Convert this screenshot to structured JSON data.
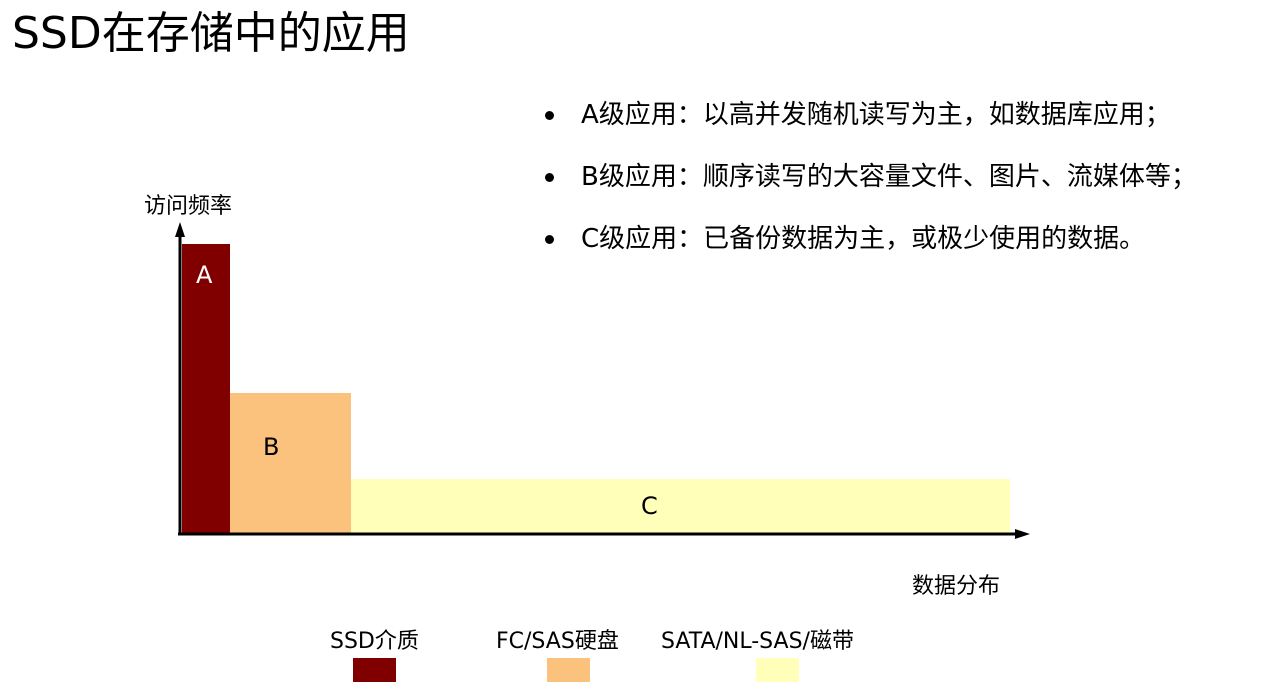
{
  "title": "SSD在存储中的应用",
  "bullets": [
    "A级应用：以高并发随机读写为主，如数据库应用；",
    "B级应用：顺序读写的大容量文件、图片、流媒体等；",
    "C级应用：已备份数据为主，或极少使用的数据。"
  ],
  "diagram": {
    "y_axis_label": "访问频率",
    "x_axis_label": "数据分布",
    "blocks": [
      {
        "label": "A",
        "color": "#800000"
      },
      {
        "label": "B",
        "color": "#fbc27e"
      },
      {
        "label": "C",
        "color": "#ffffb9"
      }
    ]
  },
  "legend": [
    {
      "label": "SSD介质",
      "color": "#800000"
    },
    {
      "label": "FC/SAS硬盘",
      "color": "#fbc27e"
    },
    {
      "label": "SATA/NL-SAS/磁带",
      "color": "#ffffb9"
    }
  ]
}
